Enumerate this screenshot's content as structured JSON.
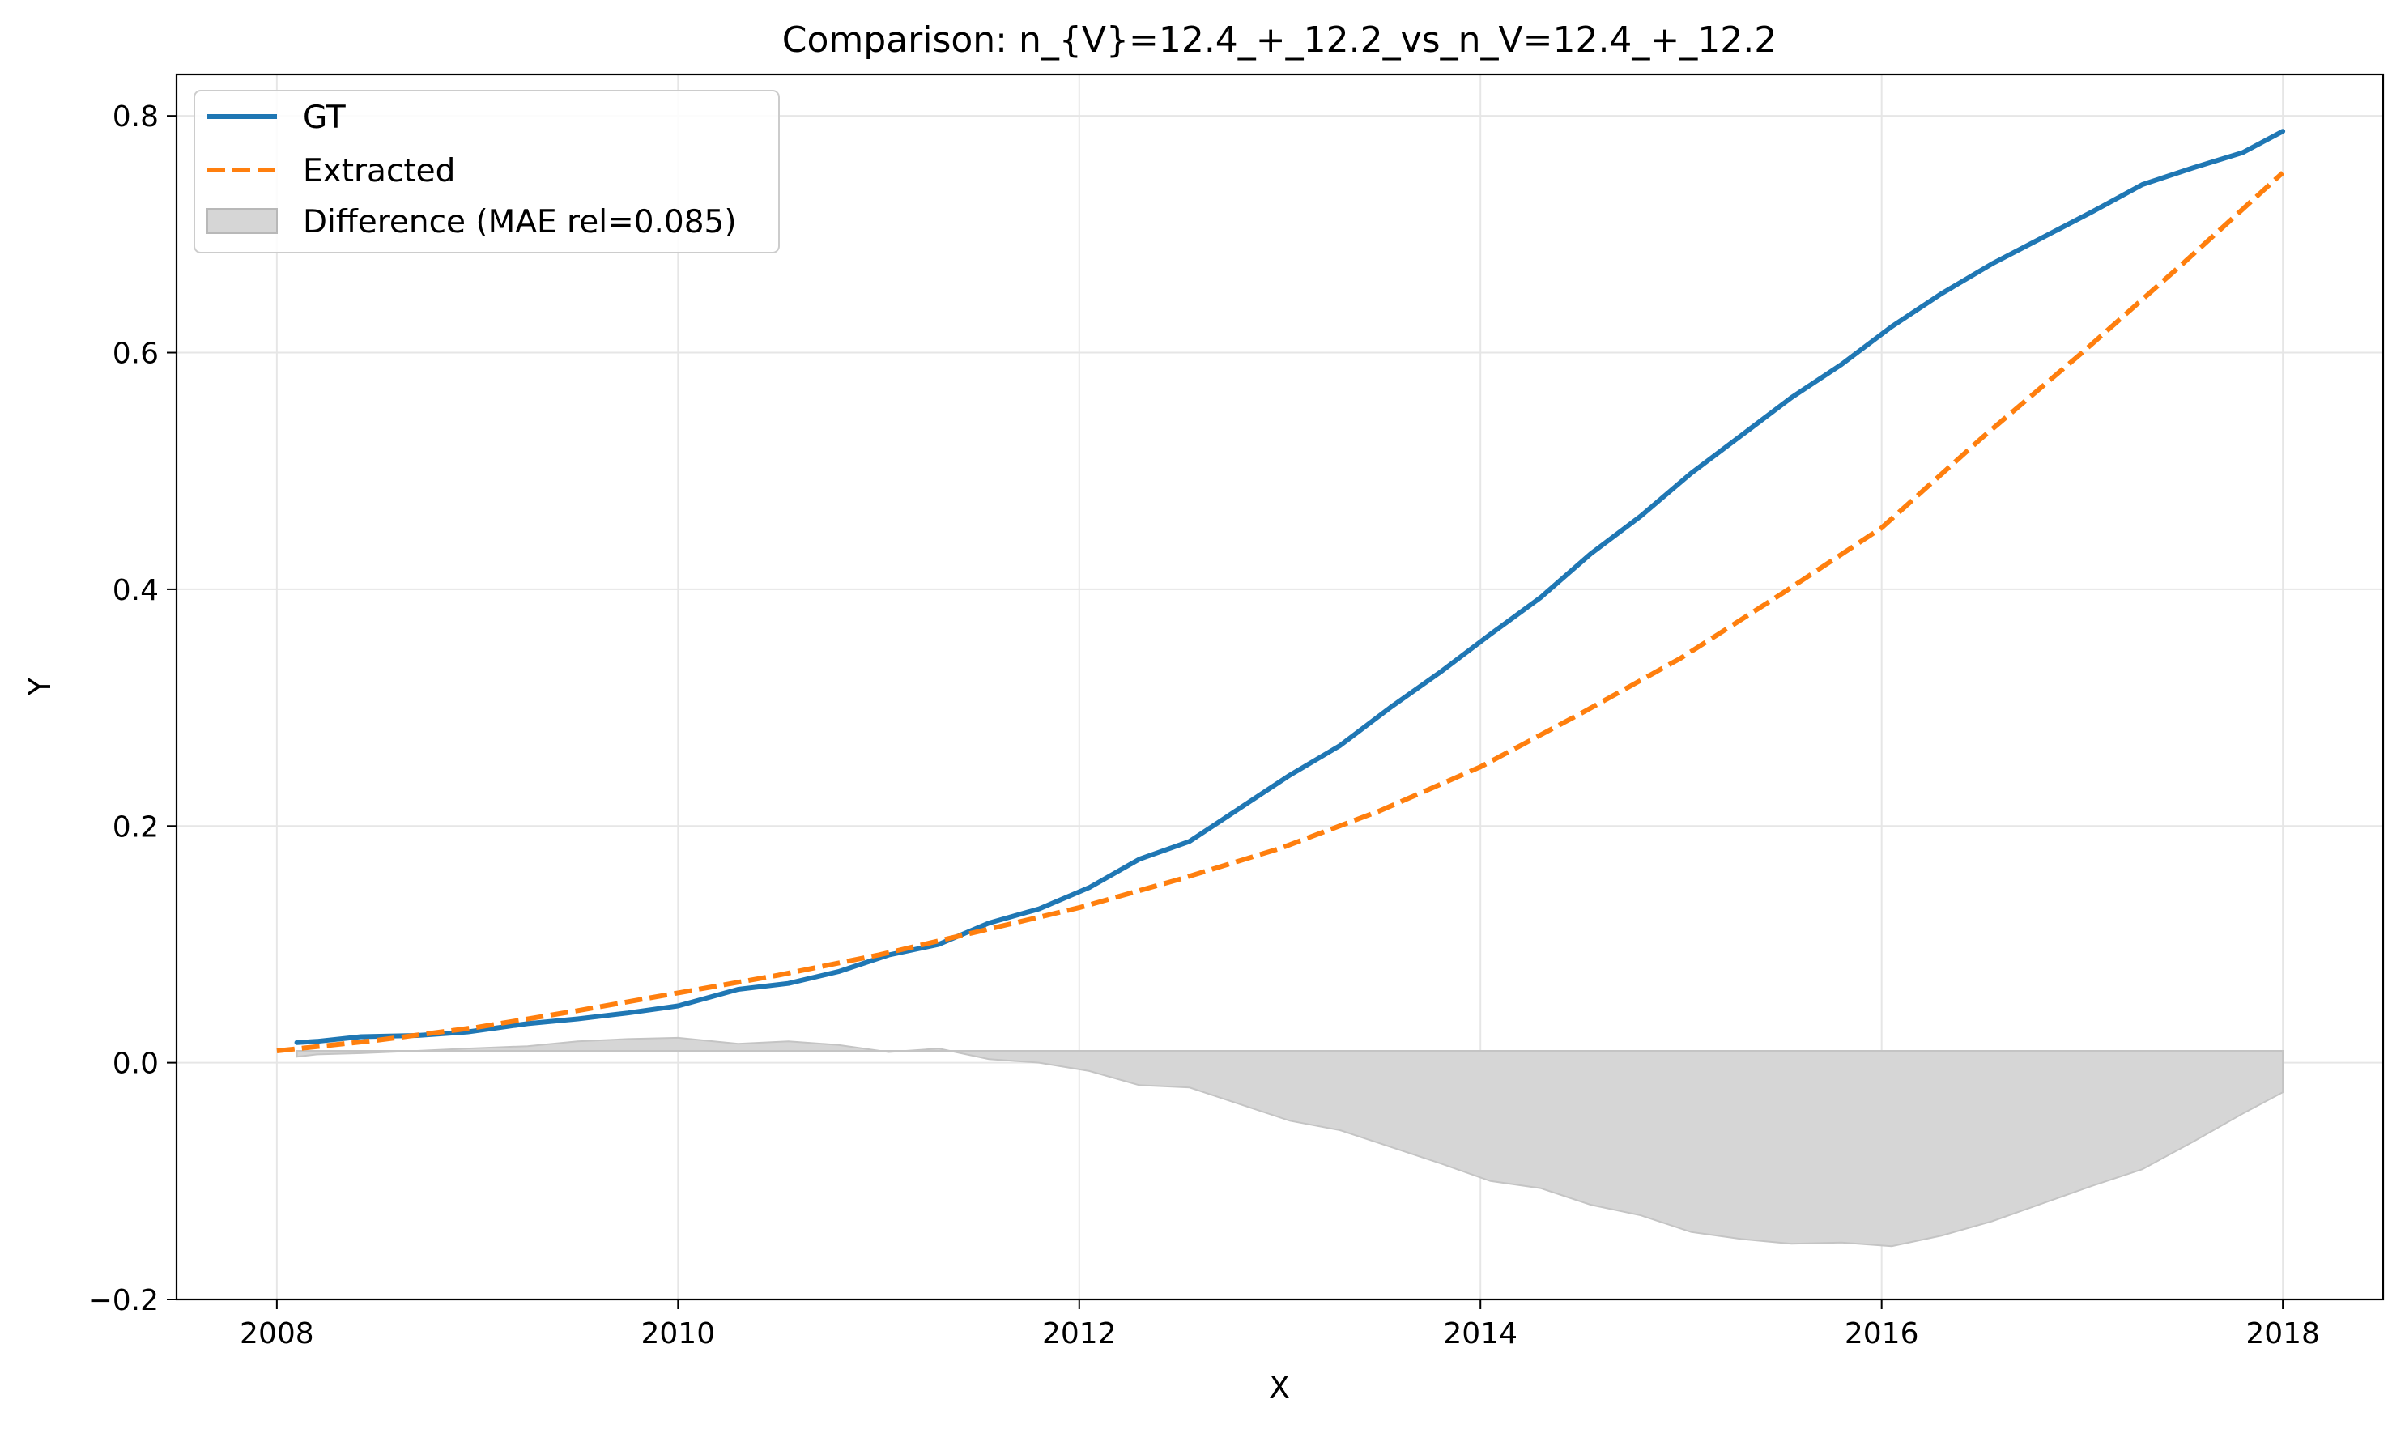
{
  "chart_data": {
    "type": "line",
    "title": "Comparison: n_{V}=12.4_+_12.2_vs_n_V=12.4_+_12.2",
    "xlabel": "X",
    "ylabel": "Y",
    "xlim": [
      2007.5,
      2018.5
    ],
    "ylim": [
      -0.2,
      0.835
    ],
    "xticks": [
      2008,
      2010,
      2012,
      2014,
      2016,
      2018
    ],
    "xtick_labels": [
      "2008",
      "2010",
      "2012",
      "2014",
      "2016",
      "2018"
    ],
    "yticks": [
      -0.2,
      0.0,
      0.2,
      0.4,
      0.6,
      0.8
    ],
    "ytick_labels": [
      "−0.2",
      "0.0",
      "0.2",
      "0.4",
      "0.6",
      "0.8"
    ],
    "grid": true,
    "legend_position": "upper-left",
    "series": [
      {
        "name": "GT",
        "style": "solid",
        "color": "#1f77b4",
        "x": [
          2008.1,
          2008.2,
          2008.42,
          2008.7,
          2008.95,
          2009.25,
          2009.5,
          2009.75,
          2010.0,
          2010.3,
          2010.55,
          2010.8,
          2011.05,
          2011.3,
          2011.55,
          2011.8,
          2012.05,
          2012.3,
          2012.55,
          2012.8,
          2013.05,
          2013.3,
          2013.55,
          2013.8,
          2014.05,
          2014.3,
          2014.55,
          2014.8,
          2015.05,
          2015.3,
          2015.55,
          2015.8,
          2016.05,
          2016.3,
          2016.55,
          2016.8,
          2017.05,
          2017.3,
          2017.55,
          2017.8,
          2018.0
        ],
        "y": [
          0.017,
          0.018,
          0.022,
          0.023,
          0.026,
          0.033,
          0.037,
          0.042,
          0.048,
          0.062,
          0.067,
          0.077,
          0.091,
          0.1,
          0.118,
          0.13,
          0.148,
          0.172,
          0.187,
          0.215,
          0.243,
          0.268,
          0.3,
          0.33,
          0.362,
          0.393,
          0.43,
          0.462,
          0.498,
          0.53,
          0.562,
          0.59,
          0.622,
          0.65,
          0.675,
          0.697,
          0.719,
          0.742,
          0.756,
          0.769,
          0.787
        ]
      },
      {
        "name": "Extracted",
        "style": "dashed",
        "color": "#ff7f0e",
        "x": [
          2008.0,
          2008.5,
          2009.0,
          2009.5,
          2010.0,
          2010.5,
          2011.0,
          2011.5,
          2012.0,
          2012.5,
          2013.0,
          2013.5,
          2014.0,
          2014.5,
          2015.0,
          2015.5,
          2016.0,
          2016.5,
          2017.0,
          2017.5,
          2018.0
        ],
        "y": [
          0.01,
          0.019,
          0.03,
          0.044,
          0.059,
          0.074,
          0.091,
          0.111,
          0.131,
          0.155,
          0.181,
          0.213,
          0.25,
          0.295,
          0.342,
          0.396,
          0.452,
          0.528,
          0.6,
          0.675,
          0.752
        ]
      }
    ],
    "difference_band": {
      "name": "Difference (MAE rel=0.085)",
      "color": "#d6d6d6",
      "baseline": 0.01,
      "x": [
        2008.1,
        2008.2,
        2008.42,
        2008.7,
        2008.95,
        2009.25,
        2009.5,
        2009.75,
        2010.0,
        2010.3,
        2010.55,
        2010.8,
        2011.05,
        2011.3,
        2011.55,
        2011.8,
        2012.05,
        2012.3,
        2012.55,
        2012.8,
        2013.05,
        2013.3,
        2013.55,
        2013.8,
        2014.05,
        2014.3,
        2014.55,
        2014.8,
        2015.05,
        2015.3,
        2015.55,
        2015.8,
        2016.05,
        2016.3,
        2016.55,
        2016.8,
        2017.05,
        2017.3,
        2017.55,
        2017.8,
        2018.0
      ],
      "y": [
        0.005,
        0.007,
        0.008,
        0.01,
        0.012,
        0.014,
        0.018,
        0.02,
        0.021,
        0.016,
        0.018,
        0.015,
        0.009,
        0.012,
        0.003,
        0.0,
        -0.007,
        -0.019,
        -0.021,
        -0.035,
        -0.049,
        -0.057,
        -0.071,
        -0.085,
        -0.1,
        -0.106,
        -0.12,
        -0.129,
        -0.143,
        -0.149,
        -0.153,
        -0.152,
        -0.155,
        -0.146,
        -0.134,
        -0.119,
        -0.104,
        -0.09,
        -0.067,
        -0.043,
        -0.025
      ]
    }
  }
}
